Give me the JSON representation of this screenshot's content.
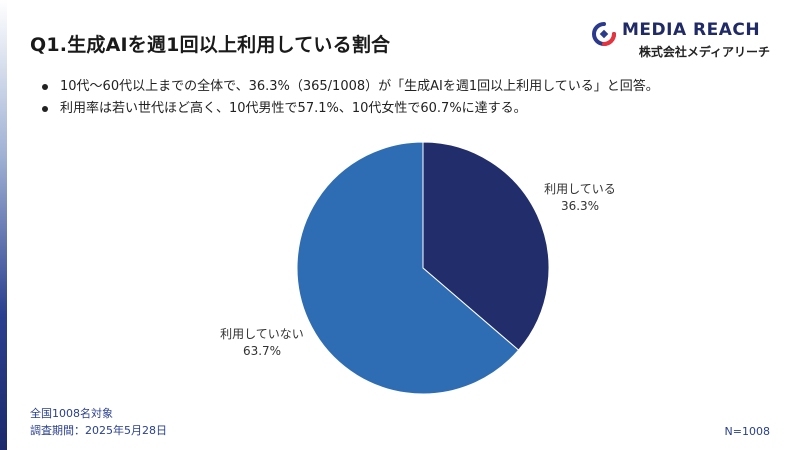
{
  "title": "Q1.生成AIを週1回以上利用している割合",
  "logo": {
    "name": "MEDIA REACH",
    "subtitle": "株式会社メディアリーチ"
  },
  "bullets": [
    "10代〜60代以上までの全体で、36.3%（365/1008）が「生成AIを週1回以上利用している」と回答。",
    "利用率は若い世代ほど高く、10代男性で57.1%、10代女性で60.7%に達する。"
  ],
  "chart_data": {
    "type": "pie",
    "slices": [
      {
        "label": "利用している",
        "value": 36.3,
        "display": "36.3%",
        "color": "#222d6b"
      },
      {
        "label": "利用していない",
        "value": 63.7,
        "display": "63.7%",
        "color": "#2e6db4"
      }
    ]
  },
  "footer": {
    "target": "全国1008名対象",
    "period": "調査期間：2025年5月28日",
    "n": "N=1008"
  }
}
